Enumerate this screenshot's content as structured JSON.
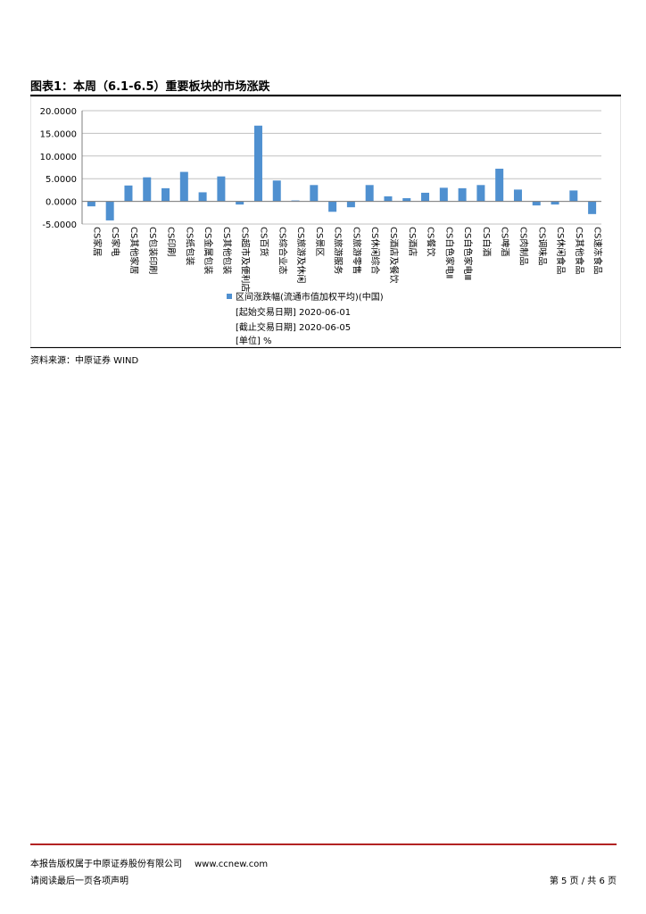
{
  "figure": {
    "title": "图表1：本周（6.1-6.5）重要板块的市场涨跌",
    "source": "资料来源：中原证券 WIND"
  },
  "footer": {
    "copyright": "本报告版权属于中原证券股份有限公司",
    "website": "www.ccnew.com",
    "disclaimer": "请阅读最后一页各项声明",
    "page": "第 5 页 / 共 6 页"
  },
  "colors": {
    "bar": "#4f90d0",
    "grid": "#c0c0c0",
    "footer_rule": "#b22222"
  },
  "chart_data": {
    "type": "bar",
    "ylim": [
      -5,
      20
    ],
    "yticks": [
      "20.0000",
      "15.0000",
      "10.0000",
      "5.0000",
      "0.0000",
      "-5.0000"
    ],
    "grid": true,
    "legend_position": "bottom",
    "legend": {
      "series": "区间涨跌幅(流通市值加权平均)(中国)",
      "start": "[起始交易日期] 2020-06-01",
      "end": "[截止交易日期] 2020-06-05",
      "unit": "[单位] %"
    },
    "categories": [
      "CS家居",
      "CS家电",
      "CS其他家居",
      "CS包装印刷",
      "CS印刷",
      "CS纸包装",
      "CS金属包装",
      "CS其他包装",
      "CS超市及便利店",
      "CS百货",
      "CS综合业态",
      "CS旅游及休闲",
      "CS景区",
      "CS旅游服务",
      "CS旅游零售",
      "CS休闲综合",
      "CS酒店及餐饮",
      "CS酒店",
      "CS餐饮",
      "CS白色家电Ⅱ",
      "CS白色家电Ⅲ",
      "CS白酒",
      "CS啤酒",
      "CS肉制品",
      "CS调味品",
      "CS休闲食品",
      "CS其他食品",
      "CS速冻食品"
    ],
    "values": [
      -1.1,
      -4.2,
      3.5,
      5.3,
      2.9,
      6.5,
      2.0,
      5.5,
      -0.7,
      16.7,
      4.6,
      0.2,
      3.6,
      -2.3,
      -1.3,
      3.6,
      1.1,
      0.7,
      1.9,
      3.0,
      2.9,
      3.6,
      7.2,
      2.6,
      -0.9,
      -0.7,
      2.4,
      -2.8
    ]
  }
}
